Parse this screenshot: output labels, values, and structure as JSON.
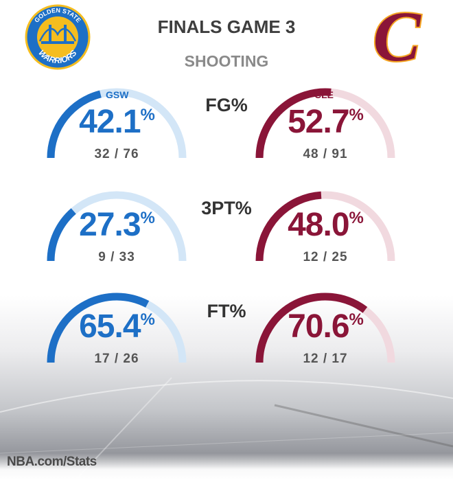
{
  "header": {
    "title": "FINALS GAME 3",
    "subtitle": "SHOOTING"
  },
  "teams": {
    "gsw": {
      "code": "GSW",
      "logo_text_top": "GOLDEN STATE",
      "logo_text_bottom": "WARRIORS"
    },
    "cle": {
      "code": "CLE",
      "logo_letter": "C"
    }
  },
  "colors": {
    "gsw": "#1d6fc6",
    "gsw_track": "#d3e6f7",
    "cle": "#8a1538",
    "cle_track": "#f1d9df",
    "gsw_logo_gold": "#f5bd1f",
    "cle_logo_gold": "#f5a623"
  },
  "chart_data": {
    "type": "gauge",
    "title": "SHOOTING",
    "categories": [
      "FG%",
      "3PT%",
      "FT%"
    ],
    "series": [
      {
        "name": "GSW",
        "values": [
          42.1,
          27.3,
          65.4
        ],
        "made_attempted": [
          "32 / 76",
          "9 / 33",
          "17 / 26"
        ]
      },
      {
        "name": "CLE",
        "values": [
          52.7,
          48.0,
          70.6
        ],
        "made_attempted": [
          "48 / 91",
          "12 / 25",
          "12 / 17"
        ]
      }
    ],
    "ylim": [
      0,
      100
    ]
  },
  "stats": [
    {
      "label": "FG%",
      "gsw_pct": "42.1",
      "gsw_made": "32 / 76",
      "cle_pct": "52.7",
      "cle_made": "48 / 91"
    },
    {
      "label": "3PT%",
      "gsw_pct": "27.3",
      "gsw_made": "9 / 33",
      "cle_pct": "48.0",
      "cle_made": "12 / 25"
    },
    {
      "label": "FT%",
      "gsw_pct": "65.4",
      "gsw_made": "17 / 26",
      "cle_pct": "70.6",
      "cle_made": "12 / 17"
    }
  ],
  "percent_sign": "%",
  "footer": {
    "source": "NBA.com/Stats"
  }
}
